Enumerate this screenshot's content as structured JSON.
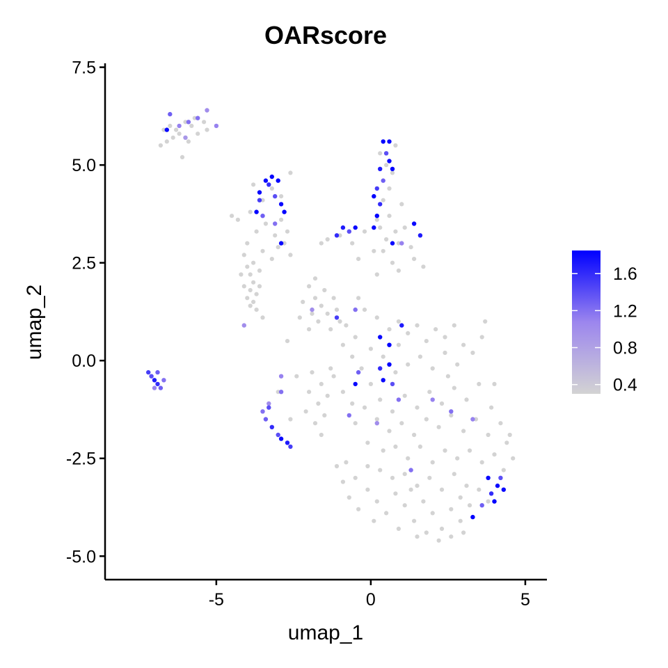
{
  "chart_data": {
    "type": "scatter",
    "title": "OARscore",
    "xlabel": "umap_1",
    "ylabel": "umap_2",
    "xlim": [
      -8.6,
      5.7
    ],
    "ylim": [
      -5.6,
      7.6
    ],
    "x_ticks": [
      -5,
      0,
      5
    ],
    "x_tick_labels": [
      "-5",
      "0",
      "5"
    ],
    "y_ticks": [
      -5.0,
      -2.5,
      0.0,
      2.5,
      5.0,
      7.5
    ],
    "y_tick_labels": [
      "-5.0",
      "-2.5",
      "0.0",
      "2.5",
      "5.0",
      "7.5"
    ],
    "grid": false,
    "legend": {
      "placement": "right",
      "type": "colorbar",
      "min": 0.3,
      "max": 1.85,
      "tick_values": [
        0.4,
        0.8,
        1.2,
        1.6
      ],
      "tick_labels": [
        "0.4",
        "0.8",
        "1.2",
        "1.6"
      ],
      "low_color": "#D3D3D3",
      "high_color": "#0000FF"
    },
    "low_color": "#D3D3D3",
    "high_color": "#0000FF",
    "points_bg": [
      [
        -6.6,
        5.6
      ],
      [
        -6.4,
        5.7
      ],
      [
        -6.2,
        5.8
      ],
      [
        -6.0,
        5.7
      ],
      [
        -6.3,
        5.9
      ],
      [
        -5.8,
        6.0
      ],
      [
        -5.6,
        5.8
      ],
      [
        -5.4,
        6.1
      ],
      [
        -5.7,
        6.2
      ],
      [
        -6.8,
        5.5
      ],
      [
        -6.5,
        6.0
      ],
      [
        -5.9,
        5.6
      ],
      [
        -5.3,
        5.9
      ],
      [
        -6.1,
        5.2
      ],
      [
        -6.7,
        5.9
      ],
      [
        -6.0,
        6.1
      ],
      [
        -4.3,
        3.6
      ],
      [
        -3.9,
        3.8
      ],
      [
        -3.7,
        3.3
      ],
      [
        -3.4,
        3.5
      ],
      [
        -3.1,
        3.2
      ],
      [
        -2.9,
        3.6
      ],
      [
        -2.7,
        3.3
      ],
      [
        -3.5,
        4.1
      ],
      [
        -3.2,
        4.4
      ],
      [
        -2.9,
        4.2
      ],
      [
        -2.6,
        4.8
      ],
      [
        -3.8,
        4.5
      ],
      [
        -4.0,
        3.0
      ],
      [
        -3.5,
        2.8
      ],
      [
        -3.0,
        2.9
      ],
      [
        -2.6,
        2.7
      ],
      [
        -4.1,
        2.7
      ],
      [
        -4.0,
        2.4
      ],
      [
        -3.9,
        2.2
      ],
      [
        -3.8,
        2.0
      ],
      [
        -3.9,
        1.8
      ],
      [
        -4.0,
        1.6
      ],
      [
        -3.8,
        1.5
      ],
      [
        -3.7,
        1.7
      ],
      [
        -3.6,
        1.9
      ],
      [
        -3.7,
        1.3
      ],
      [
        -3.9,
        1.4
      ],
      [
        -4.1,
        1.9
      ],
      [
        -3.6,
        2.3
      ],
      [
        -3.5,
        1.1
      ],
      [
        -4.2,
        2.2
      ],
      [
        -3.8,
        2.5
      ],
      [
        -2.0,
        1.9
      ],
      [
        -1.8,
        1.6
      ],
      [
        -1.6,
        1.4
      ],
      [
        -1.9,
        1.2
      ],
      [
        -1.7,
        1.0
      ],
      [
        -1.5,
        1.8
      ],
      [
        -1.4,
        1.2
      ],
      [
        -1.2,
        1.6
      ],
      [
        -2.2,
        1.5
      ],
      [
        -2.3,
        1.1
      ],
      [
        -1.3,
        0.8
      ],
      [
        -1.0,
        1.0
      ],
      [
        -1.8,
        2.1
      ],
      [
        -2.0,
        0.8
      ],
      [
        -1.1,
        1.3
      ],
      [
        -0.8,
        0.9
      ],
      [
        -1.6,
        3.0
      ],
      [
        -1.4,
        3.1
      ],
      [
        -1.0,
        3.2
      ],
      [
        -0.6,
        3.0
      ],
      [
        -0.2,
        3.3
      ],
      [
        0.1,
        2.8
      ],
      [
        -0.4,
        2.6
      ],
      [
        0.3,
        3.4
      ],
      [
        0.3,
        5.3
      ],
      [
        0.5,
        5.0
      ],
      [
        0.7,
        4.8
      ],
      [
        0.6,
        4.4
      ],
      [
        0.4,
        4.1
      ],
      [
        0.6,
        3.7
      ],
      [
        0.8,
        3.3
      ],
      [
        0.5,
        3.1
      ],
      [
        0.9,
        3.0
      ],
      [
        1.1,
        3.4
      ],
      [
        1.3,
        2.9
      ],
      [
        0.7,
        2.5
      ],
      [
        0.4,
        2.8
      ],
      [
        0.9,
        2.3
      ],
      [
        1.4,
        2.6
      ],
      [
        1.7,
        2.4
      ],
      [
        0.2,
        2.2
      ],
      [
        1.0,
        4.0
      ],
      [
        0.2,
        3.6
      ],
      [
        0.8,
        5.5
      ],
      [
        -0.2,
        1.3
      ],
      [
        0.2,
        1.1
      ],
      [
        0.6,
        0.8
      ],
      [
        -0.5,
        0.6
      ],
      [
        0.0,
        0.3
      ],
      [
        0.4,
        0.1
      ],
      [
        0.9,
        0.4
      ],
      [
        1.2,
        0.7
      ],
      [
        1.5,
        0.9
      ],
      [
        1.8,
        0.5
      ],
      [
        2.1,
        0.8
      ],
      [
        2.4,
        0.6
      ],
      [
        2.7,
        0.9
      ],
      [
        3.0,
        0.4
      ],
      [
        3.3,
        0.2
      ],
      [
        2.8,
        -0.1
      ],
      [
        2.4,
        0.2
      ],
      [
        2.0,
        -0.2
      ],
      [
        1.6,
        0.1
      ],
      [
        1.2,
        -0.1
      ],
      [
        0.8,
        -0.3
      ],
      [
        0.4,
        -0.5
      ],
      [
        0.0,
        -0.6
      ],
      [
        -0.3,
        -0.2
      ],
      [
        -0.6,
        0.1
      ],
      [
        -0.9,
        0.4
      ],
      [
        0.3,
        -1.0
      ],
      [
        0.7,
        -1.3
      ],
      [
        1.1,
        -0.9
      ],
      [
        1.5,
        -1.2
      ],
      [
        1.9,
        -0.8
      ],
      [
        2.3,
        -1.1
      ],
      [
        2.7,
        -0.7
      ],
      [
        3.1,
        -1.0
      ],
      [
        3.5,
        -0.6
      ],
      [
        3.9,
        -1.2
      ],
      [
        4.2,
        -1.6
      ],
      [
        3.8,
        -1.9
      ],
      [
        3.4,
        -1.5
      ],
      [
        3.0,
        -1.8
      ],
      [
        2.6,
        -1.4
      ],
      [
        2.2,
        -1.7
      ],
      [
        1.8,
        -1.5
      ],
      [
        1.4,
        -1.9
      ],
      [
        1.0,
        -1.6
      ],
      [
        0.6,
        -1.8
      ],
      [
        0.2,
        -1.5
      ],
      [
        -0.2,
        -1.2
      ],
      [
        -0.5,
        -1.6
      ],
      [
        -0.1,
        -2.1
      ],
      [
        0.4,
        -2.3
      ],
      [
        0.8,
        -2.2
      ],
      [
        1.2,
        -2.5
      ],
      [
        1.6,
        -2.2
      ],
      [
        2.0,
        -2.6
      ],
      [
        2.4,
        -2.3
      ],
      [
        2.8,
        -2.5
      ],
      [
        3.2,
        -2.3
      ],
      [
        3.6,
        -2.6
      ],
      [
        4.0,
        -2.4
      ],
      [
        4.4,
        -2.1
      ],
      [
        4.6,
        -2.5
      ],
      [
        4.3,
        -2.8
      ],
      [
        -1.1,
        -2.7
      ],
      [
        -0.9,
        -3.1
      ],
      [
        -0.7,
        -3.5
      ],
      [
        -0.4,
        -3.8
      ],
      [
        -0.1,
        -3.3
      ],
      [
        0.2,
        -3.6
      ],
      [
        0.5,
        -3.9
      ],
      [
        0.8,
        -3.4
      ],
      [
        1.1,
        -3.7
      ],
      [
        1.4,
        -4.1
      ],
      [
        1.7,
        -3.6
      ],
      [
        2.0,
        -3.9
      ],
      [
        2.3,
        -4.3
      ],
      [
        2.6,
        -3.8
      ],
      [
        2.9,
        -4.1
      ],
      [
        3.2,
        -3.7
      ],
      [
        3.5,
        -3.3
      ],
      [
        3.8,
        -3.6
      ],
      [
        3.1,
        -3.2
      ],
      [
        2.7,
        -2.9
      ],
      [
        2.3,
        -3.3
      ],
      [
        1.9,
        -3.0
      ],
      [
        1.5,
        -3.2
      ],
      [
        1.1,
        -2.9
      ],
      [
        0.7,
        -3.0
      ],
      [
        0.3,
        -2.8
      ],
      [
        -0.1,
        -2.7
      ],
      [
        -0.5,
        -3.0
      ],
      [
        -0.8,
        -2.6
      ],
      [
        0.1,
        -4.1
      ],
      [
        0.9,
        -4.3
      ],
      [
        1.8,
        -4.4
      ],
      [
        2.2,
        -4.6
      ],
      [
        1.5,
        -4.5
      ],
      [
        2.6,
        -4.5
      ],
      [
        3.0,
        -4.4
      ],
      [
        -1.9,
        -0.3
      ],
      [
        -1.6,
        -0.6
      ],
      [
        -1.4,
        -0.9
      ],
      [
        -1.7,
        -1.1
      ],
      [
        -2.0,
        -0.8
      ],
      [
        -1.2,
        -0.4
      ],
      [
        -1.5,
        -1.4
      ],
      [
        -1.8,
        -1.6
      ],
      [
        -1.6,
        -1.9
      ],
      [
        -2.1,
        -1.3
      ],
      [
        -3.0,
        -0.8
      ],
      [
        -2.6,
        -1.5
      ],
      [
        -0.9,
        -0.8
      ],
      [
        -0.6,
        -1.1
      ],
      [
        -4.5,
        3.7
      ],
      [
        -2.8,
        3.0
      ],
      [
        -3.2,
        2.6
      ],
      [
        -1.3,
        -0.2
      ],
      [
        -0.4,
        1.6
      ],
      [
        2.5,
        -0.4
      ],
      [
        3.6,
        0.6
      ],
      [
        4.0,
        -0.6
      ],
      [
        4.5,
        -1.9
      ],
      [
        3.7,
        1.0
      ],
      [
        0.9,
        1.0
      ],
      [
        -2.4,
        -0.4
      ],
      [
        -2.7,
        0.5
      ],
      [
        2.9,
        -3.5
      ],
      [
        1.3,
        -3.3
      ]
    ],
    "points_hi": [
      [
        -7.1,
        -0.4,
        1.4
      ],
      [
        -7.0,
        -0.5,
        1.7
      ],
      [
        -6.9,
        -0.6,
        1.6
      ],
      [
        -6.8,
        -0.7,
        1.3
      ],
      [
        -7.2,
        -0.3,
        1.5
      ],
      [
        -6.7,
        -0.5,
        1.2
      ],
      [
        -7.0,
        -0.7,
        1.1
      ],
      [
        -6.9,
        -0.3,
        1.3
      ],
      [
        -6.5,
        6.3,
        1.3
      ],
      [
        -6.2,
        6.0,
        1.1
      ],
      [
        -5.9,
        6.1,
        1.2
      ],
      [
        -5.6,
        6.2,
        1.2
      ],
      [
        -5.3,
        6.4,
        1.0
      ],
      [
        -6.6,
        5.9,
        1.8
      ],
      [
        -5.0,
        6.0,
        1.1
      ],
      [
        -6.0,
        5.7,
        0.9
      ],
      [
        -3.4,
        4.6,
        1.8
      ],
      [
        -3.2,
        4.7,
        1.8
      ],
      [
        -3.0,
        4.6,
        1.9
      ],
      [
        -3.6,
        4.3,
        1.8
      ],
      [
        -3.3,
        4.5,
        1.6
      ],
      [
        -3.1,
        4.2,
        1.4
      ],
      [
        -3.7,
        3.8,
        1.9
      ],
      [
        -3.5,
        3.7,
        1.3
      ],
      [
        -2.8,
        3.8,
        1.9
      ],
      [
        -2.9,
        4.0,
        1.8
      ],
      [
        -2.9,
        3.0,
        1.8
      ],
      [
        -3.1,
        3.5,
        1.2
      ],
      [
        -3.6,
        4.1,
        1.5
      ],
      [
        0.4,
        5.6,
        1.9
      ],
      [
        0.6,
        5.6,
        1.8
      ],
      [
        0.5,
        5.3,
        1.4
      ],
      [
        0.6,
        5.1,
        1.8
      ],
      [
        0.3,
        4.9,
        1.7
      ],
      [
        0.4,
        4.6,
        1.3
      ],
      [
        0.2,
        4.4,
        1.5
      ],
      [
        0.1,
        4.2,
        1.9
      ],
      [
        0.3,
        4.0,
        1.6
      ],
      [
        0.2,
        3.7,
        1.9
      ],
      [
        0.1,
        3.4,
        1.8
      ],
      [
        0.7,
        4.9,
        1.9
      ],
      [
        -0.9,
        3.4,
        1.7
      ],
      [
        -1.1,
        3.2,
        1.6
      ],
      [
        -0.7,
        3.3,
        1.4
      ],
      [
        -0.5,
        3.4,
        1.8
      ],
      [
        1.4,
        3.5,
        1.8
      ],
      [
        1.6,
        3.2,
        1.7
      ],
      [
        0.7,
        3.0,
        1.8
      ],
      [
        1.0,
        3.0,
        1.1
      ],
      [
        -1.1,
        1.1,
        1.5
      ],
      [
        -0.5,
        1.3,
        1.2
      ],
      [
        0.3,
        0.6,
        1.8
      ],
      [
        1.0,
        0.9,
        1.7
      ],
      [
        0.6,
        0.4,
        1.9
      ],
      [
        0.3,
        -0.2,
        1.6
      ],
      [
        0.7,
        -0.6,
        1.4
      ],
      [
        -0.4,
        -0.3,
        1.3
      ],
      [
        0.4,
        -0.5,
        1.8
      ],
      [
        -0.5,
        -0.6,
        1.8
      ],
      [
        0.6,
        -0.1,
        1.9
      ],
      [
        -3.3,
        -1.2,
        1.4
      ],
      [
        -3.4,
        -1.5,
        1.3
      ],
      [
        -3.2,
        -1.7,
        1.6
      ],
      [
        -3.0,
        -1.9,
        1.4
      ],
      [
        -2.9,
        -2.0,
        1.8
      ],
      [
        -2.7,
        -2.1,
        1.7
      ],
      [
        -2.6,
        -2.2,
        1.5
      ],
      [
        -3.5,
        -1.3,
        1.2
      ],
      [
        -0.7,
        -1.4,
        1.2
      ],
      [
        0.9,
        -1.0,
        1.2
      ],
      [
        2.0,
        -1.0,
        1.1
      ],
      [
        2.6,
        -1.3,
        1.2
      ],
      [
        3.3,
        -1.5,
        1.1
      ],
      [
        3.8,
        -3.0,
        1.8
      ],
      [
        4.1,
        -3.2,
        1.8
      ],
      [
        4.0,
        -3.6,
        1.9
      ],
      [
        4.3,
        -3.3,
        1.8
      ],
      [
        3.9,
        -3.4,
        1.6
      ],
      [
        3.6,
        -3.7,
        1.3
      ],
      [
        3.3,
        -4.0,
        1.9
      ],
      [
        4.2,
        -3.0,
        1.4
      ],
      [
        1.3,
        -2.8,
        1.2
      ],
      [
        0.2,
        -1.6,
        1.0
      ],
      [
        -4.1,
        0.9,
        1.0
      ],
      [
        -2.9,
        -0.4,
        1.1
      ],
      [
        -2.9,
        -0.8,
        1.2
      ],
      [
        -3.3,
        -1.1,
        1.0
      ],
      [
        -1.9,
        1.3,
        1.0
      ]
    ]
  }
}
